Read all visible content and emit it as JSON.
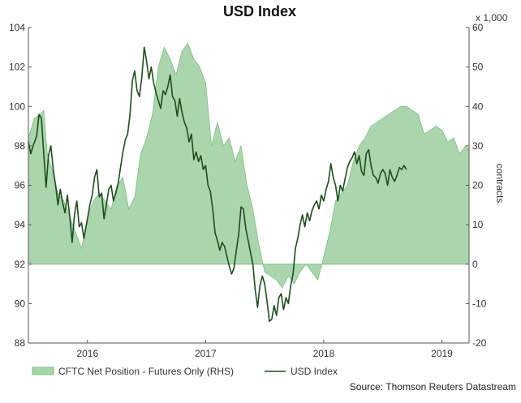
{
  "chart_data": {
    "type": "line",
    "title": "USD Index",
    "left_axis": {
      "ylim": [
        88,
        104
      ],
      "ticks": [
        88,
        90,
        92,
        94,
        96,
        98,
        100,
        102,
        104
      ]
    },
    "right_axis": {
      "unit": "x 1,000",
      "label": "contracts",
      "ylim": [
        -20,
        60
      ],
      "ticks": [
        -20,
        -10,
        0,
        10,
        20,
        30,
        40,
        50,
        60
      ]
    },
    "x_axis": {
      "range": [
        2015.5,
        2019.23
      ],
      "ticks": [
        {
          "label": "2016",
          "x": 2016.0
        },
        {
          "label": "2017",
          "x": 2017.0
        },
        {
          "label": "2018",
          "x": 2018.0
        },
        {
          "label": "2019",
          "x": 2019.0
        }
      ]
    },
    "grid": false,
    "legend_position": "bottom",
    "source": "Source: Thomson Reuters Datastream",
    "series": [
      {
        "name": "CFTC Net Position - Futures Only (RHS)",
        "type": "area",
        "axis": "right",
        "color": "#a7d4a9",
        "edge_color": "#7fbf83",
        "points": [
          [
            2015.5,
            32
          ],
          [
            2015.55,
            37
          ],
          [
            2015.6,
            38
          ],
          [
            2015.63,
            39
          ],
          [
            2015.66,
            28
          ],
          [
            2015.7,
            24
          ],
          [
            2015.75,
            18
          ],
          [
            2015.8,
            16
          ],
          [
            2015.85,
            12
          ],
          [
            2015.9,
            8
          ],
          [
            2015.95,
            4
          ],
          [
            2016.0,
            12
          ],
          [
            2016.05,
            16
          ],
          [
            2016.1,
            18
          ],
          [
            2016.15,
            16
          ],
          [
            2016.2,
            14
          ],
          [
            2016.25,
            20
          ],
          [
            2016.3,
            22
          ],
          [
            2016.35,
            14
          ],
          [
            2016.4,
            17
          ],
          [
            2016.45,
            28
          ],
          [
            2016.5,
            32
          ],
          [
            2016.55,
            38
          ],
          [
            2016.6,
            50
          ],
          [
            2016.65,
            55
          ],
          [
            2016.7,
            52
          ],
          [
            2016.75,
            48
          ],
          [
            2016.8,
            54
          ],
          [
            2016.85,
            56
          ],
          [
            2016.9,
            52
          ],
          [
            2016.95,
            50
          ],
          [
            2017.0,
            46
          ],
          [
            2017.05,
            30
          ],
          [
            2017.1,
            36
          ],
          [
            2017.15,
            30
          ],
          [
            2017.2,
            32
          ],
          [
            2017.25,
            26
          ],
          [
            2017.3,
            30
          ],
          [
            2017.35,
            20
          ],
          [
            2017.4,
            14
          ],
          [
            2017.45,
            5
          ],
          [
            2017.5,
            -2
          ],
          [
            2017.55,
            -3
          ],
          [
            2017.6,
            -4
          ],
          [
            2017.65,
            -6
          ],
          [
            2017.7,
            -3
          ],
          [
            2017.75,
            -5
          ],
          [
            2017.8,
            -2
          ],
          [
            2017.85,
            0
          ],
          [
            2017.9,
            -2
          ],
          [
            2017.95,
            -4
          ],
          [
            2018.0,
            2
          ],
          [
            2018.05,
            8
          ],
          [
            2018.1,
            16
          ],
          [
            2018.15,
            18
          ],
          [
            2018.2,
            20
          ],
          [
            2018.25,
            26
          ],
          [
            2018.3,
            30
          ],
          [
            2018.35,
            32
          ],
          [
            2018.4,
            35
          ],
          [
            2018.45,
            36
          ],
          [
            2018.5,
            37
          ],
          [
            2018.55,
            38
          ],
          [
            2018.6,
            39
          ],
          [
            2018.65,
            40
          ],
          [
            2018.7,
            40
          ],
          [
            2018.75,
            39
          ],
          [
            2018.8,
            38
          ],
          [
            2018.85,
            33
          ],
          [
            2018.9,
            34
          ],
          [
            2018.95,
            35
          ],
          [
            2019.0,
            34
          ],
          [
            2019.05,
            31
          ],
          [
            2019.1,
            32
          ],
          [
            2019.15,
            28
          ],
          [
            2019.2,
            30
          ],
          [
            2019.23,
            29
          ]
        ]
      },
      {
        "name": "USD Index",
        "type": "line",
        "axis": "left",
        "color": "#1d4d1d",
        "points": [
          [
            2015.5,
            98.2
          ],
          [
            2015.52,
            97.6
          ],
          [
            2015.54,
            98.0
          ],
          [
            2015.57,
            98.5
          ],
          [
            2015.59,
            99.6
          ],
          [
            2015.61,
            99.4
          ],
          [
            2015.63,
            97.6
          ],
          [
            2015.65,
            95.9
          ],
          [
            2015.67,
            97.5
          ],
          [
            2015.69,
            98.0
          ],
          [
            2015.71,
            96.8
          ],
          [
            2015.73,
            96.0
          ],
          [
            2015.75,
            95.0
          ],
          [
            2015.77,
            95.8
          ],
          [
            2015.79,
            95.1
          ],
          [
            2015.81,
            94.6
          ],
          [
            2015.83,
            95.5
          ],
          [
            2015.85,
            94.4
          ],
          [
            2015.87,
            93.1
          ],
          [
            2015.89,
            94.5
          ],
          [
            2015.91,
            95.2
          ],
          [
            2015.93,
            93.9
          ],
          [
            2015.95,
            94.1
          ],
          [
            2015.97,
            93.3
          ],
          [
            2016.0,
            94.3
          ],
          [
            2016.02,
            95.0
          ],
          [
            2016.04,
            95.5
          ],
          [
            2016.06,
            96.4
          ],
          [
            2016.08,
            96.8
          ],
          [
            2016.1,
            95.4
          ],
          [
            2016.12,
            95.6
          ],
          [
            2016.14,
            94.3
          ],
          [
            2016.16,
            95.0
          ],
          [
            2016.18,
            95.8
          ],
          [
            2016.2,
            96.0
          ],
          [
            2016.22,
            95.2
          ],
          [
            2016.24,
            95.6
          ],
          [
            2016.26,
            96.1
          ],
          [
            2016.28,
            96.9
          ],
          [
            2016.3,
            97.7
          ],
          [
            2016.32,
            98.3
          ],
          [
            2016.34,
            98.6
          ],
          [
            2016.36,
            99.6
          ],
          [
            2016.38,
            101.3
          ],
          [
            2016.4,
            101.8
          ],
          [
            2016.42,
            100.8
          ],
          [
            2016.44,
            100.5
          ],
          [
            2016.46,
            101.5
          ],
          [
            2016.48,
            103.0
          ],
          [
            2016.5,
            102.3
          ],
          [
            2016.52,
            101.4
          ],
          [
            2016.54,
            102.0
          ],
          [
            2016.56,
            101.2
          ],
          [
            2016.58,
            100.7
          ],
          [
            2016.6,
            100.3
          ],
          [
            2016.62,
            99.9
          ],
          [
            2016.64,
            100.8
          ],
          [
            2016.66,
            100.6
          ],
          [
            2016.68,
            101.0
          ],
          [
            2016.7,
            101.6
          ],
          [
            2016.72,
            100.5
          ],
          [
            2016.74,
            100.3
          ],
          [
            2016.76,
            99.5
          ],
          [
            2016.78,
            100.4
          ],
          [
            2016.8,
            99.7
          ],
          [
            2016.82,
            99.2
          ],
          [
            2016.84,
            98.9
          ],
          [
            2016.86,
            98.2
          ],
          [
            2016.88,
            98.6
          ],
          [
            2016.9,
            97.3
          ],
          [
            2016.92,
            97.7
          ],
          [
            2016.94,
            97.2
          ],
          [
            2016.96,
            97.5
          ],
          [
            2016.98,
            96.8
          ],
          [
            2017.0,
            97.0
          ],
          [
            2017.02,
            96.0
          ],
          [
            2017.04,
            95.7
          ],
          [
            2017.06,
            94.8
          ],
          [
            2017.08,
            93.6
          ],
          [
            2017.1,
            93.2
          ],
          [
            2017.12,
            92.7
          ],
          [
            2017.14,
            93.1
          ],
          [
            2017.16,
            92.9
          ],
          [
            2017.18,
            92.4
          ],
          [
            2017.2,
            91.9
          ],
          [
            2017.22,
            91.5
          ],
          [
            2017.24,
            91.8
          ],
          [
            2017.26,
            92.7
          ],
          [
            2017.28,
            93.5
          ],
          [
            2017.3,
            94.9
          ],
          [
            2017.32,
            94.8
          ],
          [
            2017.34,
            93.8
          ],
          [
            2017.36,
            93.2
          ],
          [
            2017.38,
            92.6
          ],
          [
            2017.4,
            92.0
          ],
          [
            2017.42,
            90.7
          ],
          [
            2017.44,
            89.8
          ],
          [
            2017.46,
            90.9
          ],
          [
            2017.48,
            91.4
          ],
          [
            2017.5,
            91.0
          ],
          [
            2017.52,
            90.1
          ],
          [
            2017.54,
            89.1
          ],
          [
            2017.56,
            89.2
          ],
          [
            2017.58,
            89.9
          ],
          [
            2017.6,
            89.4
          ],
          [
            2017.62,
            90.3
          ],
          [
            2017.64,
            90.5
          ],
          [
            2017.66,
            89.7
          ],
          [
            2017.68,
            90.3
          ],
          [
            2017.7,
            90.0
          ],
          [
            2017.72,
            90.9
          ],
          [
            2017.74,
            91.5
          ],
          [
            2017.76,
            92.8
          ],
          [
            2017.78,
            93.3
          ],
          [
            2017.8,
            94.0
          ],
          [
            2017.82,
            94.5
          ],
          [
            2017.84,
            93.9
          ],
          [
            2017.86,
            94.6
          ],
          [
            2017.88,
            94.2
          ],
          [
            2017.9,
            94.7
          ],
          [
            2017.92,
            95.0
          ],
          [
            2017.94,
            95.2
          ],
          [
            2017.96,
            94.8
          ],
          [
            2017.98,
            95.5
          ],
          [
            2018.0,
            95.2
          ],
          [
            2018.02,
            95.8
          ],
          [
            2018.04,
            96.2
          ],
          [
            2018.06,
            97.1
          ],
          [
            2018.08,
            96.4
          ],
          [
            2018.1,
            96.0
          ],
          [
            2018.12,
            95.2
          ],
          [
            2018.14,
            96.0
          ],
          [
            2018.16,
            95.7
          ],
          [
            2018.18,
            96.3
          ],
          [
            2018.2,
            96.9
          ],
          [
            2018.22,
            97.2
          ],
          [
            2018.24,
            97.4
          ],
          [
            2018.26,
            97.7
          ],
          [
            2018.28,
            97.1
          ],
          [
            2018.3,
            97.5
          ],
          [
            2018.32,
            96.7
          ],
          [
            2018.34,
            96.5
          ],
          [
            2018.36,
            97.6
          ],
          [
            2018.38,
            97.8
          ],
          [
            2018.4,
            97.0
          ],
          [
            2018.42,
            96.5
          ],
          [
            2018.44,
            96.4
          ],
          [
            2018.46,
            96.1
          ],
          [
            2018.48,
            96.6
          ],
          [
            2018.5,
            96.8
          ],
          [
            2018.52,
            96.6
          ],
          [
            2018.54,
            96.0
          ],
          [
            2018.56,
            96.8
          ],
          [
            2018.58,
            96.4
          ],
          [
            2018.6,
            96.2
          ],
          [
            2018.62,
            96.5
          ],
          [
            2018.64,
            96.9
          ],
          [
            2018.66,
            96.8
          ],
          [
            2018.68,
            97.0
          ],
          [
            2018.7,
            96.8
          ]
        ]
      }
    ]
  }
}
